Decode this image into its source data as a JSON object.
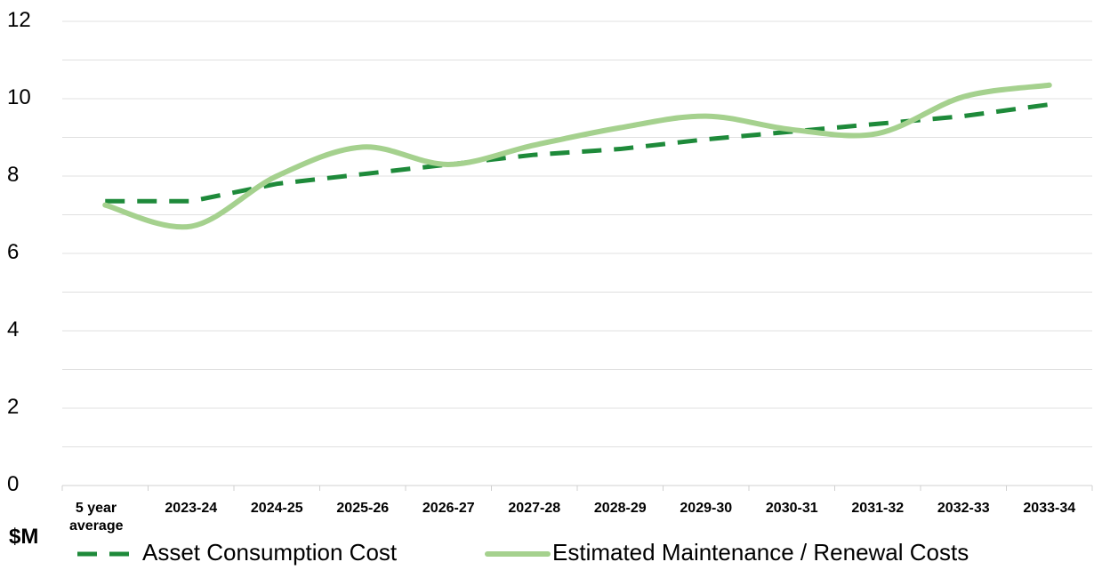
{
  "chart_data": {
    "type": "line",
    "y_unit_label": "$M",
    "categories": [
      "5 year average",
      "2023-24",
      "2024-25",
      "2025-26",
      "2026-27",
      "2027-28",
      "2028-29",
      "2029-30",
      "2030-31",
      "2031-32",
      "2032-33",
      "2033-34"
    ],
    "series": [
      {
        "name": "Asset Consumption Cost",
        "color": "#1e8a3a",
        "dashed": true,
        "smooth": false,
        "values": [
          7.35,
          7.35,
          7.8,
          8.05,
          8.3,
          8.55,
          8.7,
          8.95,
          9.15,
          9.35,
          9.55,
          9.85
        ]
      },
      {
        "name": "Estimated Maintenance / Renewal Costs",
        "color": "#a5d18e",
        "dashed": false,
        "smooth": true,
        "values": [
          7.25,
          6.7,
          8.0,
          8.75,
          8.3,
          8.8,
          9.25,
          9.55,
          9.2,
          9.1,
          10.05,
          10.35
        ]
      }
    ],
    "ylim": [
      0,
      12
    ],
    "yticks": [
      0,
      2,
      4,
      6,
      8,
      10,
      12
    ],
    "minor_yticks": [
      1,
      3,
      5,
      7,
      9,
      11
    ],
    "grid": true,
    "legend": "bottom"
  }
}
